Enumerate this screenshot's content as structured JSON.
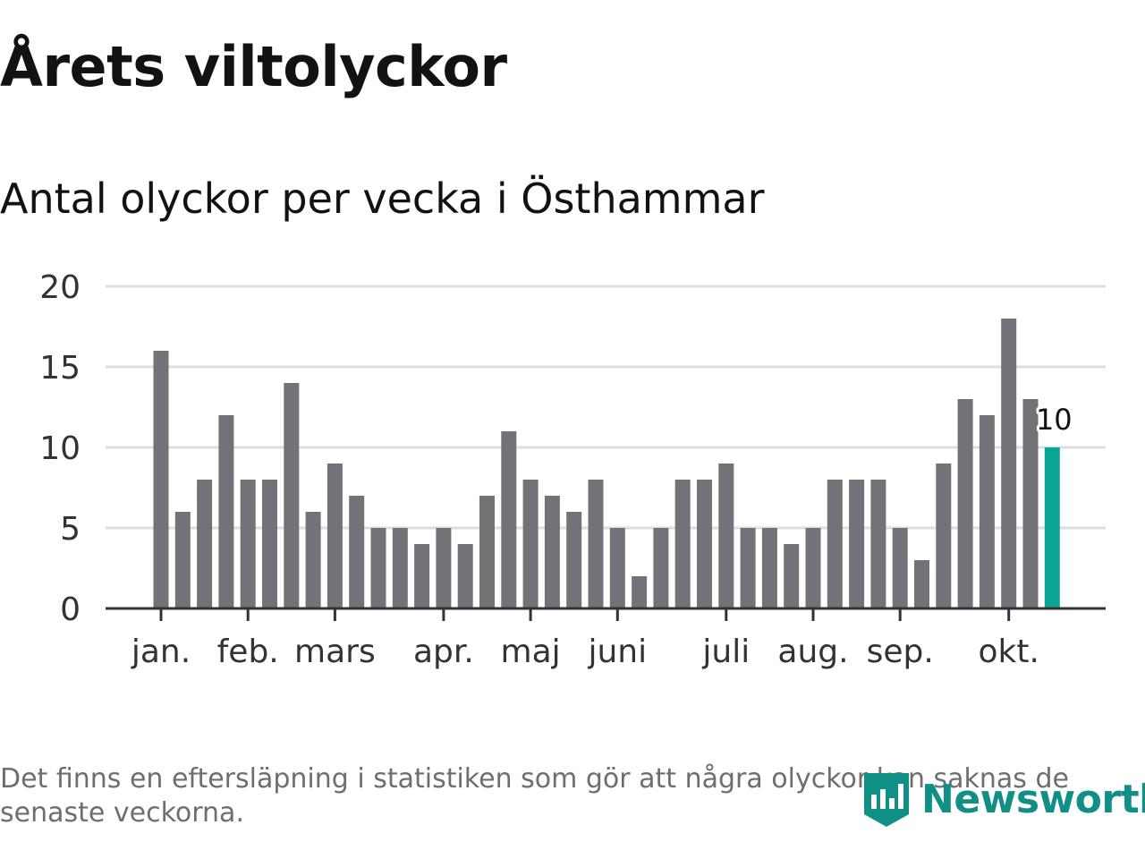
{
  "header": {
    "title": "Årets viltolyckor",
    "subtitle": "Antal olyckor per vecka i Östhammar"
  },
  "footer": {
    "note": "Det finns en eftersläpning i statistiken som gör att några olyckor kan saknas de senaste veckorna.",
    "brand": "Newsworthy",
    "brand_icon": "newsworthy-logo-icon"
  },
  "colors": {
    "bar": "#737278",
    "highlight": "#0aa596",
    "grid": "#dedede",
    "axis": "#333333",
    "text": "#333333",
    "brand": "#0f8f86"
  },
  "chart_data": {
    "type": "bar",
    "title": "Årets viltolyckor",
    "subtitle": "Antal olyckor per vecka i Östhammar",
    "xlabel": "",
    "ylabel": "",
    "ylim": [
      0,
      20
    ],
    "yticks": [
      0,
      5,
      10,
      15,
      20
    ],
    "grid": true,
    "legend": "none",
    "values": [
      16,
      6,
      8,
      12,
      8,
      8,
      14,
      6,
      9,
      7,
      5,
      5,
      4,
      5,
      4,
      7,
      11,
      8,
      7,
      6,
      8,
      5,
      2,
      5,
      8,
      8,
      9,
      5,
      5,
      4,
      5,
      8,
      8,
      8,
      5,
      3,
      9,
      13,
      12,
      18,
      13,
      10
    ],
    "month_ticks": [
      {
        "label": "jan.",
        "position": 0
      },
      {
        "label": "feb.",
        "position": 4
      },
      {
        "label": "mars",
        "position": 8
      },
      {
        "label": "apr.",
        "position": 13
      },
      {
        "label": "maj",
        "position": 17
      },
      {
        "label": "juni",
        "position": 21
      },
      {
        "label": "juli",
        "position": 26
      },
      {
        "label": "aug.",
        "position": 30
      },
      {
        "label": "sep.",
        "position": 34
      },
      {
        "label": "okt.",
        "position": 39
      }
    ],
    "highlight": {
      "index": 41,
      "label": "10"
    }
  }
}
